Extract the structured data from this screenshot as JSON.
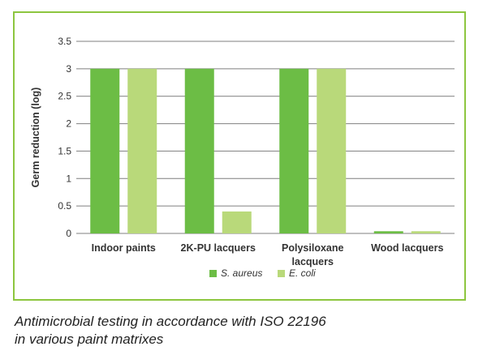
{
  "chart_data": {
    "type": "bar",
    "categories": [
      [
        "Indoor paints"
      ],
      [
        "2K-PU lacquers"
      ],
      [
        "Polysiloxane",
        "lacquers"
      ],
      [
        "Wood lacquers"
      ]
    ],
    "series": [
      {
        "name": "S. aureus",
        "color": "#6cbd45",
        "values": [
          3,
          3,
          3,
          0.04
        ]
      },
      {
        "name": "E. coli",
        "color": "#b9d97a",
        "values": [
          3,
          0.4,
          3,
          0.04
        ]
      }
    ],
    "ylabel": "Germ reduction (log)",
    "ylim": [
      0,
      3.5
    ],
    "yticks": [
      "0",
      "0.5",
      "1",
      "1.5",
      "2",
      "2.5",
      "3",
      "3.5"
    ],
    "grid": true,
    "legend": "bottom"
  },
  "caption": {
    "line1": "Antimicrobial testing in accordance with ISO 22196",
    "line2": "in various paint matrixes"
  },
  "colors": {
    "frame": "#8dc63f",
    "grid": "#7f7f7f"
  }
}
